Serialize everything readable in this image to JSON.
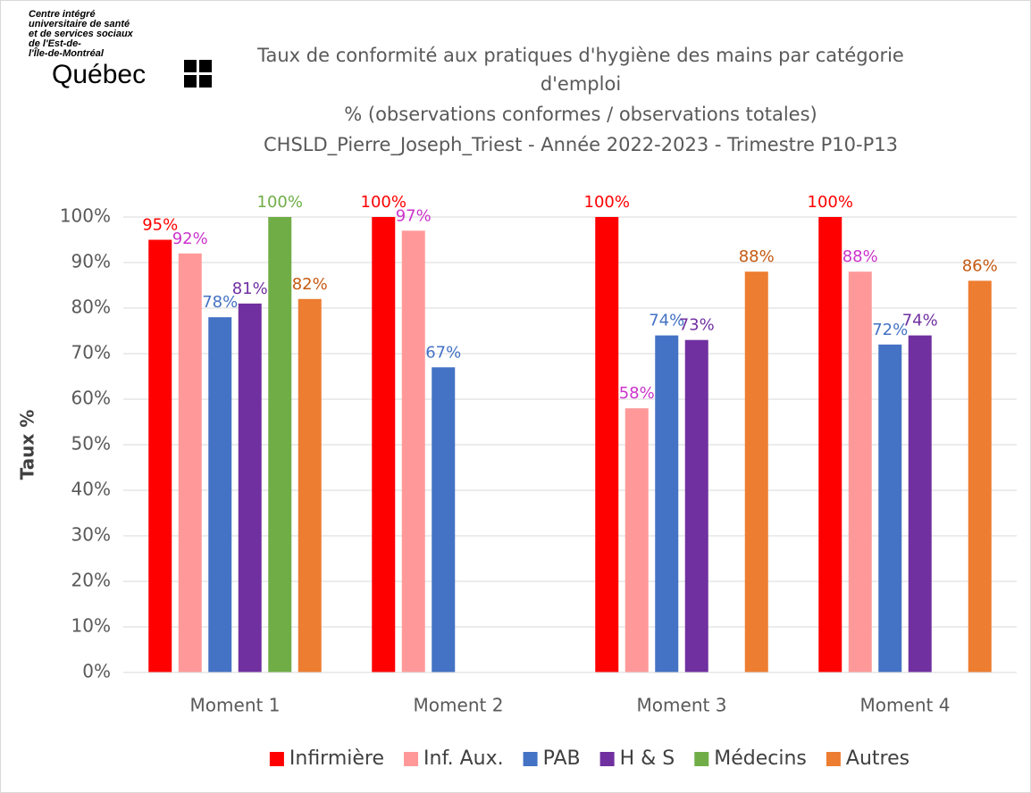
{
  "logo": {
    "lines": [
      "Centre intégré",
      "universitaire de santé",
      "et de services sociaux",
      "de l'Est-de-",
      "l'Île-de-Montréal"
    ],
    "name": "Québec"
  },
  "chart_data": {
    "type": "bar",
    "title": [
      "Taux de conformité aux pratiques d'hygiène des mains par catégorie",
      "d'emploi",
      "% (observations conformes / observations totales)",
      "CHSLD_Pierre_Joseph_Triest - Année 2022-2023 - Trimestre P10-P13"
    ],
    "y_label": "Taux %",
    "categories": [
      "Moment 1",
      "Moment 2",
      "Moment 3",
      "Moment 4"
    ],
    "series": [
      {
        "name": "Infirmière",
        "color": "#ff0000",
        "label_color": "#ff0000",
        "values": [
          95,
          100,
          100,
          100
        ],
        "value_labels": [
          "95%",
          "100%",
          "100%",
          "100%"
        ]
      },
      {
        "name": "Inf. Aux.",
        "color": "#ff9999",
        "label_color": "#cc33cc",
        "values": [
          92,
          97,
          58,
          88
        ],
        "value_labels": [
          "92%",
          "97%",
          "58%",
          "88%"
        ]
      },
      {
        "name": "PAB",
        "color": "#4472c4",
        "label_color": "#4472c4",
        "values": [
          78,
          67,
          74,
          72
        ],
        "value_labels": [
          "78%",
          "67%",
          "74%",
          "72%"
        ]
      },
      {
        "name": "H & S",
        "color": "#7030a0",
        "label_color": "#7030a0",
        "values": [
          81,
          null,
          73,
          74
        ],
        "value_labels": [
          "81%",
          null,
          "73%",
          "74%"
        ]
      },
      {
        "name": "Médecins",
        "color": "#70ad47",
        "label_color": "#70ad47",
        "values": [
          100,
          null,
          null,
          null
        ],
        "value_labels": [
          "100%",
          null,
          null,
          null
        ]
      },
      {
        "name": "Autres",
        "color": "#ed7d31",
        "label_color": "#c55a11",
        "values": [
          82,
          null,
          88,
          86
        ],
        "value_labels": [
          "82%",
          null,
          "88%",
          "86%"
        ]
      }
    ],
    "ylim": [
      0,
      100
    ],
    "yticks": [
      {
        "value": 0,
        "label": "0%"
      },
      {
        "value": 10,
        "label": "10%"
      },
      {
        "value": 20,
        "label": "20%"
      },
      {
        "value": 30,
        "label": "30%"
      },
      {
        "value": 40,
        "label": "40%"
      },
      {
        "value": 50,
        "label": "50%"
      },
      {
        "value": 60,
        "label": "60%"
      },
      {
        "value": 70,
        "label": "70%"
      },
      {
        "value": 80,
        "label": "80%"
      },
      {
        "value": 90,
        "label": "90%"
      },
      {
        "value": 100,
        "label": "100%"
      }
    ],
    "grid": true,
    "legend": "bottom"
  }
}
